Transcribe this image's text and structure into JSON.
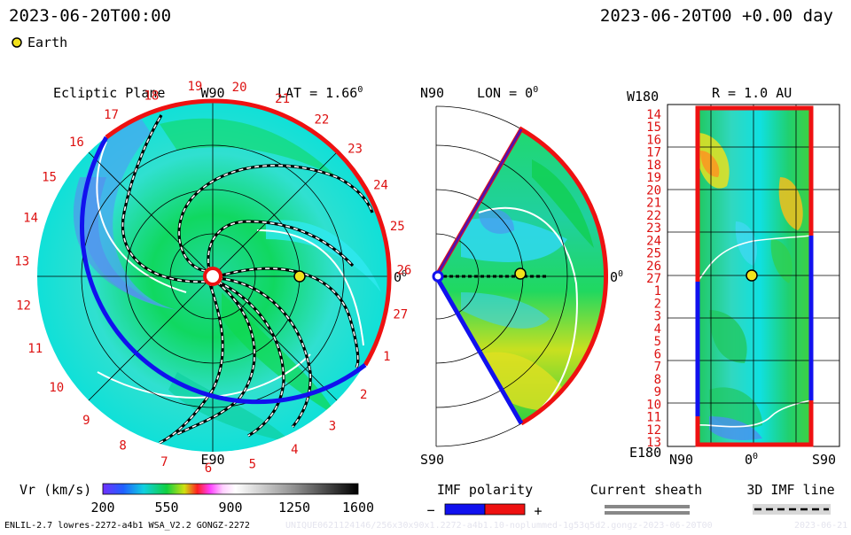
{
  "header": {
    "datetime_left": "2023-06-20T00:00",
    "datetime_right": "2023-06-20T00 +0.00 day",
    "legend_earth": "Earth"
  },
  "ecliptic": {
    "title": "Ecliptic Plane",
    "lat_label": "LAT = 1.66",
    "lat_deg_sup": "0",
    "top_label": "W90",
    "bottom_label": "E90",
    "right_label": "0",
    "right_deg_sup": "0",
    "rotation_numbers": [
      "20",
      "21",
      "22",
      "23",
      "24",
      "25",
      "26",
      "27",
      "1",
      "2",
      "3",
      "4",
      "5",
      "6",
      "7",
      "8",
      "9",
      "10",
      "11",
      "12",
      "13",
      "14",
      "15",
      "16",
      "17",
      "18",
      "19"
    ]
  },
  "meridional": {
    "top_label": "N90",
    "lon_label": "LON = 0",
    "lon_deg_sup": "0",
    "bottom_label": "S90",
    "right_label": "0",
    "right_deg_sup": "0"
  },
  "radial": {
    "title_left": "W180",
    "title": "R = 1.0 AU",
    "bottom_left": "E180",
    "x_labels": [
      "N90",
      "0",
      "S90"
    ],
    "x_deg_sup": "0",
    "y_labels": [
      "14",
      "15",
      "16",
      "17",
      "18",
      "19",
      "20",
      "21",
      "22",
      "23",
      "24",
      "25",
      "26",
      "27",
      "1",
      "2",
      "3",
      "4",
      "5",
      "6",
      "7",
      "8",
      "9",
      "10",
      "11",
      "12",
      "13"
    ]
  },
  "colorbar": {
    "label": "Vr (km/s)",
    "ticks": [
      "200",
      "550",
      "900",
      "1250",
      "1600"
    ],
    "min": 200,
    "max": 1600
  },
  "legends": {
    "imf_title": "IMF polarity",
    "imf_minus": "−",
    "imf_plus": "+",
    "sheath_title": "Current sheath",
    "imf_line_title": "3D IMF line"
  },
  "footer": {
    "model": "ENLIL-2.7 lowres-2272-a4b1 WSA_V2.2 GONGZ-2272",
    "watermark": "UNIQUE0621124146/256x30x90x1.2272-a4b1.10-noplummed-1g53q5d2.gongz-2023-06-20T00",
    "watermark_right": "2023-06-21"
  },
  "colors": {
    "imf_negative": "#1111ee",
    "imf_positive": "#ee1111",
    "earth": "#f2e21c",
    "numbers": "#dd1111",
    "sheath": "#888888"
  },
  "icons": {
    "earth_marker": "earth-icon"
  }
}
